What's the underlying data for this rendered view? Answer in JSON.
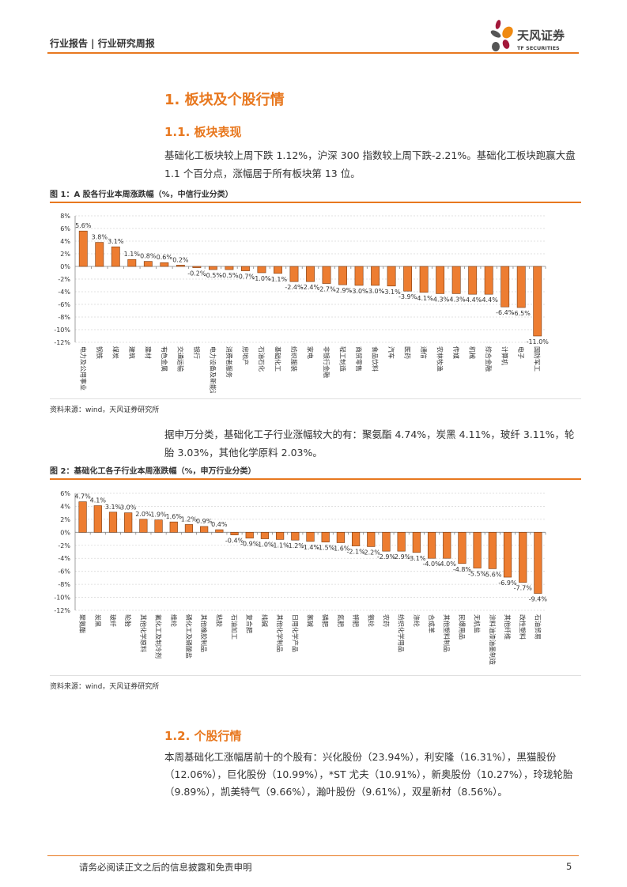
{
  "header": {
    "title": "行业报告 | 行业研究周报",
    "logo_text": "天风证券",
    "logo_sub": "TF SECURITIES",
    "accent": "#e8781f"
  },
  "section1": {
    "title": "1. 板块及个股行情"
  },
  "section11": {
    "title": "1.1. 板块表现",
    "para": "基础化工板块较上周下跌 1.12%，沪深 300 指数较上周下跌-2.21%。基础化工板块跑赢大盘 1.1 个百分点，涨幅居于所有板块第 13 位。"
  },
  "fig1": {
    "title": "图 1：A 股各行业本周涨跌幅（%，中信行业分类）",
    "source": "资料来源：wind，天风证券研究所"
  },
  "mid_para": "据申万分类，基础化工子行业涨幅较大的有：聚氨酯 4.74%，炭黑 4.11%，玻纤 3.11%，轮胎 3.03%，其他化学原料 2.03%。",
  "fig2": {
    "title": "图 2：基础化工各子行业本周涨跌幅（%，申万行业分类）",
    "source": "资料来源：wind，天风证券研究所"
  },
  "section12": {
    "title": "1.2. 个股行情",
    "para": "本周基础化工涨幅居前十的个股有：兴化股份（23.94%），利安隆（16.31%），黑猫股份（12.06%），巨化股份（10.99%），*ST 尤夫（10.91%），新奥股份（10.27%），玲珑轮胎（9.89%），凯美特气（9.66%），瀚叶股份（9.61%），双星新材（8.56%）。"
  },
  "footer": {
    "disclaimer": "请务必阅读正文之后的信息披露和免责申明",
    "page": "5"
  },
  "chart_data": [
    {
      "type": "bar",
      "title": "",
      "bar_color": "#ed7d31",
      "ylim": [
        -12,
        8
      ],
      "ytick_step": 2,
      "grid": true,
      "yformat": "%",
      "categories": [
        "电力及公用事业",
        "钢铁",
        "煤炭",
        "建筑",
        "建材",
        "有色金属",
        "交通运输",
        "银行",
        "电力设备及新能源",
        "消费者服务",
        "房地产",
        "石油石化",
        "基础化工",
        "纺织服装",
        "家电",
        "非银行金融",
        "轻工制造",
        "商贸零售",
        "食品饮料",
        "汽车",
        "医药",
        "通信",
        "农林牧渔",
        "传媒",
        "机械",
        "综合金融",
        "计算机",
        "电子",
        "国防军工"
      ],
      "values": [
        5.6,
        3.8,
        3.1,
        1.1,
        0.8,
        0.6,
        0.2,
        -0.2,
        -0.5,
        -0.5,
        -0.7,
        -1.0,
        -1.1,
        -2.4,
        -2.4,
        -2.7,
        -2.9,
        -3.0,
        -3.0,
        -3.1,
        -3.9,
        -4.1,
        -4.3,
        -4.3,
        -4.4,
        -4.4,
        -6.4,
        -6.5,
        -11.0
      ]
    },
    {
      "type": "bar",
      "title": "",
      "bar_color": "#ed7d31",
      "ylim": [
        -12,
        6
      ],
      "ytick_step": 2,
      "grid": true,
      "yformat": "%",
      "categories": [
        "聚氨酯",
        "炭黑",
        "玻纤",
        "轮胎",
        "其他化学原料",
        "氟化工及制冷剂",
        "维纶",
        "磷化工及磷酸盐",
        "其他橡胶制品",
        "粘胶",
        "石油加工",
        "复合肥",
        "纯碱",
        "其他化学制品",
        "日用化学产品",
        "氯碱",
        "磷肥",
        "氮肥",
        "钾肥",
        "氨纶",
        "农药",
        "纺织化学用品",
        "涤纶",
        "合成革",
        "其他塑料制品",
        "民爆用品",
        "无机盐",
        "涂料油漆油墨制造",
        "其他纤维",
        "改性塑料",
        "石油贸易"
      ],
      "values": [
        4.7,
        4.1,
        3.1,
        3.0,
        2.0,
        1.9,
        1.6,
        1.2,
        0.9,
        0.4,
        -0.4,
        -0.9,
        -1.0,
        -1.1,
        -1.2,
        -1.4,
        -1.5,
        -1.6,
        -2.1,
        -2.2,
        -2.9,
        -2.9,
        -3.1,
        -4.0,
        -4.0,
        -4.8,
        -5.5,
        -5.6,
        -6.9,
        -7.7,
        -9.4
      ]
    }
  ]
}
